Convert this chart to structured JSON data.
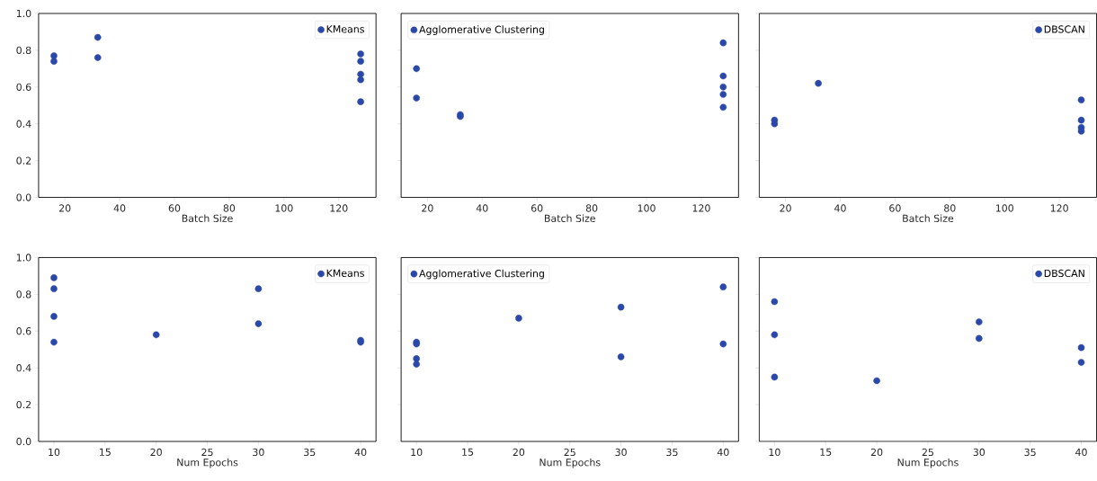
{
  "chart_data": [
    {
      "type": "scatter",
      "xlabel": "Batch Size",
      "xlim": [
        10.4,
        133.6
      ],
      "ylim": [
        0,
        1
      ],
      "xticks": [
        20,
        40,
        60,
        80,
        100,
        120
      ],
      "yticks": [
        {
          "value": 0,
          "label": "0.0"
        },
        {
          "value": 0.2,
          "label": "0.2"
        },
        {
          "value": 0.4,
          "label": "0.4"
        },
        {
          "value": 0.6,
          "label": "0.6"
        },
        {
          "value": 0.8,
          "label": "0.8"
        },
        {
          "value": 1,
          "label": "1.0"
        }
      ],
      "legend": "top right",
      "marker": "circle",
      "series": [
        {
          "name": "KMeans",
          "color": "#2a48a8",
          "x": [
            16,
            16,
            32,
            32,
            128,
            128,
            128,
            128,
            128
          ],
          "values": [
            0.77,
            0.74,
            0.87,
            0.76,
            0.78,
            0.74,
            0.67,
            0.64,
            0.52
          ]
        }
      ]
    },
    {
      "type": "scatter",
      "xlabel": "Batch Size",
      "xlim": [
        10.4,
        133.6
      ],
      "ylim": [
        0,
        1
      ],
      "xticks": [
        20,
        40,
        60,
        80,
        100,
        120
      ],
      "yticks": [
        0,
        0.2,
        0.4,
        0.6,
        0.8,
        1
      ],
      "tick_labels": "x",
      "legend": "top left",
      "marker": "circle",
      "series": [
        {
          "name": "Agglomerative Clustering",
          "color": "#2a48a8",
          "x": [
            16,
            16,
            32,
            32,
            128,
            128,
            128,
            128,
            128
          ],
          "values": [
            0.7,
            0.54,
            0.45,
            0.44,
            0.84,
            0.66,
            0.6,
            0.56,
            0.49
          ]
        }
      ]
    },
    {
      "type": "scatter",
      "xlabel": "Batch Size",
      "xlim": [
        10.4,
        133.6
      ],
      "ylim": [
        0,
        1
      ],
      "xticks": [
        20,
        40,
        60,
        80,
        100,
        120
      ],
      "yticks": [
        0,
        0.2,
        0.4,
        0.6,
        0.8,
        1
      ],
      "tick_labels": "x",
      "legend": "top right",
      "marker": "circle",
      "series": [
        {
          "name": "DBSCAN",
          "color": "#2a48a8",
          "x": [
            16,
            16,
            32,
            128,
            128,
            128,
            128
          ],
          "values": [
            0.42,
            0.4,
            0.62,
            0.53,
            0.42,
            0.38,
            0.36
          ]
        }
      ]
    },
    {
      "type": "scatter",
      "xlabel": "Num Epochs",
      "xlim": [
        8.5,
        41.5
      ],
      "ylim": [
        0,
        1
      ],
      "xticks": [
        10,
        15,
        20,
        25,
        30,
        35,
        40
      ],
      "yticks": [
        {
          "value": 0,
          "label": "0.0"
        },
        {
          "value": 0.2,
          "label": "0.2"
        },
        {
          "value": 0.4,
          "label": "0.4"
        },
        {
          "value": 0.6,
          "label": "0.6"
        },
        {
          "value": 0.8,
          "label": "0.8"
        },
        {
          "value": 1,
          "label": "1.0"
        }
      ],
      "legend": "top right",
      "marker": "circle",
      "series": [
        {
          "name": "KMeans",
          "color": "#2a48a8",
          "x": [
            10,
            10,
            10,
            10,
            20,
            30,
            30,
            40,
            40
          ],
          "values": [
            0.89,
            0.83,
            0.68,
            0.54,
            0.58,
            0.83,
            0.64,
            0.55,
            0.54
          ]
        }
      ]
    },
    {
      "type": "scatter",
      "xlabel": "Num Epochs",
      "xlim": [
        8.5,
        41.5
      ],
      "ylim": [
        0,
        1
      ],
      "xticks": [
        10,
        15,
        20,
        25,
        30,
        35,
        40
      ],
      "yticks": [
        0,
        0.2,
        0.4,
        0.6,
        0.8,
        1
      ],
      "tick_labels": "x",
      "legend": "top left",
      "marker": "circle",
      "series": [
        {
          "name": "Agglomerative Clustering",
          "color": "#2a48a8",
          "x": [
            10,
            10,
            10,
            10,
            20,
            30,
            30,
            40,
            40
          ],
          "values": [
            0.54,
            0.53,
            0.45,
            0.42,
            0.67,
            0.73,
            0.46,
            0.84,
            0.53
          ]
        }
      ]
    },
    {
      "type": "scatter",
      "xlabel": "Num Epochs",
      "xlim": [
        8.5,
        41.5
      ],
      "ylim": [
        0,
        1
      ],
      "xticks": [
        10,
        15,
        20,
        25,
        30,
        35,
        40
      ],
      "yticks": [
        0,
        0.2,
        0.4,
        0.6,
        0.8,
        1
      ],
      "tick_labels": "x",
      "legend": "top right",
      "marker": "circle",
      "series": [
        {
          "name": "DBSCAN",
          "color": "#2a48a8",
          "x": [
            10,
            10,
            10,
            20,
            30,
            30,
            40,
            40
          ],
          "values": [
            0.76,
            0.58,
            0.35,
            0.33,
            0.65,
            0.56,
            0.51,
            0.43
          ]
        }
      ]
    }
  ]
}
